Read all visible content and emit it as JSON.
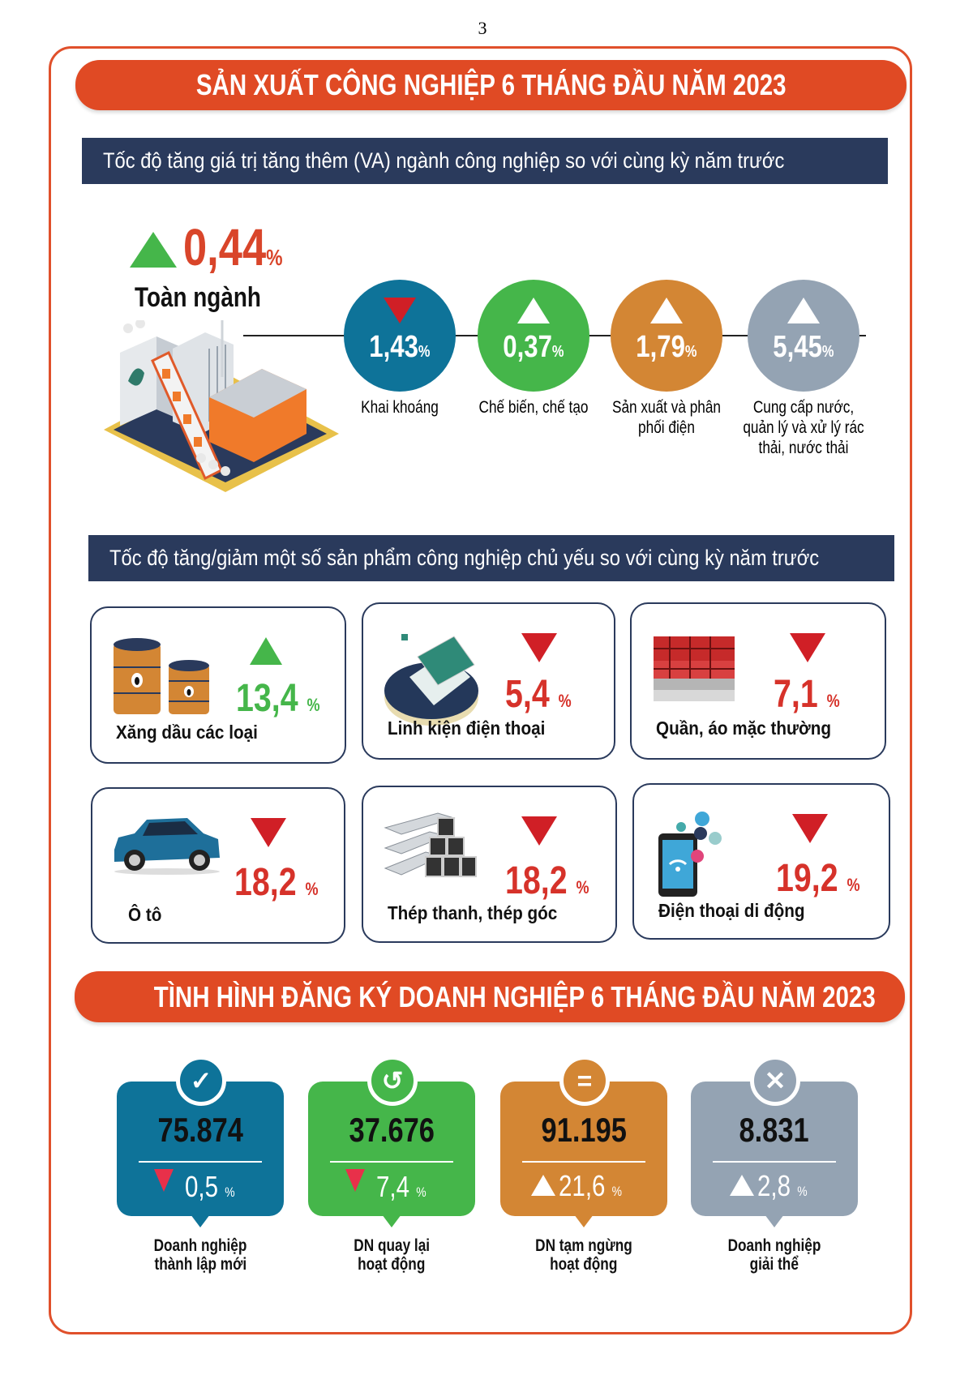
{
  "page_number": "3",
  "section1": {
    "title": "SẢN XUẤT CÔNG NGHIỆP 6 THÁNG ĐẦU NĂM 2023",
    "va_heading": "Tốc độ tăng giá trị tăng thêm (VA) ngành công nghiệp so với cùng kỳ năm trước",
    "total": {
      "value": "0,44",
      "unit": "%",
      "direction": "up",
      "label": "Toàn ngành"
    },
    "sectors": [
      {
        "value": "1,43",
        "unit": "%",
        "direction": "down",
        "label": "Khai khoáng",
        "color": "#0e7399"
      },
      {
        "value": "0,37",
        "unit": "%",
        "direction": "up",
        "label": "Chế biến, chế tạo",
        "color": "#45b64a"
      },
      {
        "value": "1,79",
        "unit": "%",
        "direction": "up",
        "label": "Sản xuất và phân phối điện",
        "color": "#d38634"
      },
      {
        "value": "5,45",
        "unit": "%",
        "direction": "up",
        "label": "Cung cấp nước, quản lý và xử lý rác thải, nước thải",
        "color": "#94a3b3"
      }
    ],
    "products_heading": "Tốc độ tăng/giảm một số sản phẩm công nghiệp chủ yếu so với cùng kỳ năm trước",
    "products": [
      {
        "label": "Xăng dầu các loại",
        "value": "13,4",
        "unit": "%",
        "direction": "up",
        "icon": "oil-barrel-icon"
      },
      {
        "label": "Linh kiện điện thoại",
        "value": "5,4",
        "unit": "%",
        "direction": "down",
        "icon": "circuit-board-icon"
      },
      {
        "label": "Quần, áo mặc thường",
        "value": "7,1",
        "unit": "%",
        "direction": "down",
        "icon": "clothes-stack-icon"
      },
      {
        "label": "Ô tô",
        "value": "18,2",
        "unit": "%",
        "direction": "down",
        "icon": "car-icon"
      },
      {
        "label": "Thép thanh, thép góc",
        "value": "18,2",
        "unit": "%",
        "direction": "down",
        "icon": "steel-bars-icon"
      },
      {
        "label": "Điện thoại di động",
        "value": "19,2",
        "unit": "%",
        "direction": "down",
        "icon": "smartphone-icon"
      }
    ]
  },
  "section2": {
    "title": "TÌNH HÌNH ĐĂNG KÝ DOANH NGHIỆP 6 THÁNG ĐẦU NĂM 2023",
    "stats": [
      {
        "value": "75.874",
        "change": "0,5",
        "unit": "%",
        "direction": "down",
        "label_1": "Doanh nghiệp",
        "label_2": "thành lập mới",
        "color": "#0e7399",
        "icon": "checkmark-icon"
      },
      {
        "value": "37.676",
        "change": "7,4",
        "unit": "%",
        "direction": "down",
        "label_1": "DN quay lại",
        "label_2": "hoạt động",
        "color": "#45b64a",
        "icon": "return-arrow-icon"
      },
      {
        "value": "91.195",
        "change": "21,6",
        "unit": "%",
        "direction": "up",
        "label_1": "DN tạm ngừng",
        "label_2": "hoạt động",
        "color": "#d38634",
        "icon": "pause-equals-icon"
      },
      {
        "value": "8.831",
        "change": "2,8",
        "unit": "%",
        "direction": "up",
        "label_1": "Doanh nghiệp",
        "label_2": "giải thể",
        "color": "#94a3b3",
        "icon": "close-x-icon"
      }
    ]
  },
  "colors": {
    "banner": "#e04a24",
    "navy": "#2a3a5c",
    "up": "#45b64a",
    "down": "#d01f26",
    "value_red": "#d6322a"
  }
}
